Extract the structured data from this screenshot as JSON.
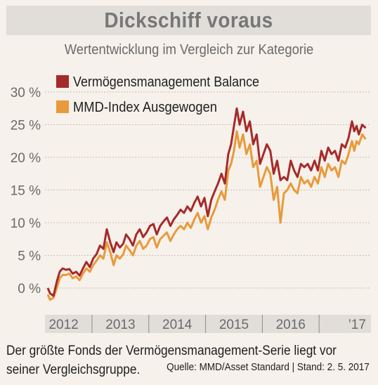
{
  "header": {
    "title": "Dickschiff voraus",
    "subtitle": "Wertentwicklung im Vergleich zur Kategorie"
  },
  "footer": {
    "caption_line1": "Der größte Fonds der Vermögensmanagement-Serie liegt vor",
    "caption_line2": "seiner Vergleichsgruppe.",
    "source": "Quelle: MMD/Asset Standard  |  Stand: 2. 5. 2017"
  },
  "colors": {
    "fund": "#a52a2a",
    "index": "#e89a3c",
    "grid": "#c9c0b5",
    "axis_band": "#e1ddd9"
  },
  "chart_data": {
    "type": "line",
    "ylim": [
      -3,
      30
    ],
    "yticks": [
      0,
      5,
      10,
      15,
      20,
      25,
      30
    ],
    "ytick_labels": [
      "0 %",
      "5 %",
      "10 %",
      "15 %",
      "20 %",
      "25 %",
      "30 %"
    ],
    "xlim": [
      2011.72,
      2017.34
    ],
    "x_year_labels": [
      {
        "label": "2012",
        "center": 2012.0
      },
      {
        "label": "2013",
        "center": 2013.0
      },
      {
        "label": "2014",
        "center": 2014.0
      },
      {
        "label": "2015",
        "center": 2015.0
      },
      {
        "label": "2016",
        "center": 2016.0
      },
      {
        "label": "’17",
        "center": 2017.17
      }
    ],
    "x_separators": [
      2012.5,
      2013.5,
      2014.5,
      2015.5,
      2016.5
    ],
    "series": [
      {
        "name": "Vermögensmanagement Balance",
        "color": "#a52a2a",
        "x": [
          2011.72,
          2011.76,
          2011.82,
          2011.88,
          2011.93,
          2011.98,
          2012.04,
          2012.1,
          2012.16,
          2012.22,
          2012.28,
          2012.34,
          2012.4,
          2012.46,
          2012.52,
          2012.58,
          2012.64,
          2012.7,
          2012.76,
          2012.82,
          2012.88,
          2012.93,
          2012.99,
          2013.05,
          2013.1,
          2013.16,
          2013.22,
          2013.28,
          2013.34,
          2013.4,
          2013.46,
          2013.52,
          2013.58,
          2013.64,
          2013.7,
          2013.76,
          2013.82,
          2013.88,
          2013.94,
          2014.0,
          2014.06,
          2014.12,
          2014.18,
          2014.24,
          2014.3,
          2014.36,
          2014.42,
          2014.48,
          2014.54,
          2014.6,
          2014.66,
          2014.72,
          2014.78,
          2014.84,
          2014.9,
          2014.95,
          2015.0,
          2015.05,
          2015.1,
          2015.16,
          2015.22,
          2015.28,
          2015.34,
          2015.4,
          2015.46,
          2015.52,
          2015.58,
          2015.64,
          2015.7,
          2015.76,
          2015.82,
          2015.88,
          2015.94,
          2016.0,
          2016.06,
          2016.12,
          2016.18,
          2016.24,
          2016.3,
          2016.36,
          2016.42,
          2016.48,
          2016.54,
          2016.6,
          2016.66,
          2016.72,
          2016.78,
          2016.84,
          2016.9,
          2016.96,
          2017.02,
          2017.08,
          2017.12,
          2017.16,
          2017.2,
          2017.26,
          2017.32
        ],
        "y": [
          0,
          -0.8,
          -1.2,
          1.0,
          2.5,
          3.0,
          2.8,
          2.9,
          2.2,
          2.5,
          1.9,
          3.0,
          4.0,
          3.2,
          4.5,
          5.2,
          6.5,
          6.0,
          9.0,
          7.0,
          5.5,
          7.0,
          6.2,
          6.8,
          8.2,
          7.5,
          6.5,
          8.2,
          9.0,
          7.8,
          8.5,
          9.5,
          9.8,
          8.2,
          9.5,
          10.2,
          10.8,
          9.5,
          10.5,
          11.2,
          12.0,
          11.5,
          12.5,
          11.8,
          13.0,
          14.0,
          12.5,
          13.8,
          11.0,
          13.5,
          14.8,
          16.0,
          17.5,
          16.0,
          20.5,
          22.0,
          24.8,
          27.5,
          25.0,
          27.0,
          24.0,
          25.5,
          22.0,
          23.5,
          19.0,
          20.5,
          22.0,
          21.0,
          17.5,
          19.5,
          16.5,
          17.0,
          16.5,
          19.5,
          18.0,
          17.0,
          19.0,
          18.5,
          19.0,
          18.0,
          19.5,
          18.0,
          21.0,
          19.5,
          21.5,
          20.5,
          21.0,
          19.5,
          22.0,
          21.5,
          23.0,
          25.5,
          24.0,
          24.8,
          23.5,
          25.0,
          24.5
        ]
      },
      {
        "name": "MMD-Index Ausgewogen",
        "color": "#e89a3c",
        "x": [
          2011.72,
          2011.76,
          2011.82,
          2011.88,
          2011.93,
          2011.98,
          2012.04,
          2012.1,
          2012.16,
          2012.22,
          2012.28,
          2012.34,
          2012.4,
          2012.46,
          2012.52,
          2012.58,
          2012.64,
          2012.7,
          2012.76,
          2012.82,
          2012.88,
          2012.93,
          2012.99,
          2013.05,
          2013.1,
          2013.16,
          2013.22,
          2013.28,
          2013.34,
          2013.4,
          2013.46,
          2013.52,
          2013.58,
          2013.64,
          2013.7,
          2013.76,
          2013.82,
          2013.88,
          2013.94,
          2014.0,
          2014.06,
          2014.12,
          2014.18,
          2014.24,
          2014.3,
          2014.36,
          2014.42,
          2014.48,
          2014.54,
          2014.6,
          2014.66,
          2014.72,
          2014.78,
          2014.84,
          2014.9,
          2014.95,
          2015.0,
          2015.05,
          2015.1,
          2015.16,
          2015.22,
          2015.28,
          2015.34,
          2015.4,
          2015.46,
          2015.52,
          2015.58,
          2015.64,
          2015.7,
          2015.76,
          2015.82,
          2015.88,
          2015.94,
          2016.0,
          2016.06,
          2016.12,
          2016.18,
          2016.24,
          2016.3,
          2016.36,
          2016.42,
          2016.48,
          2016.54,
          2016.6,
          2016.66,
          2016.72,
          2016.78,
          2016.84,
          2016.9,
          2016.96,
          2017.02,
          2017.08,
          2017.12,
          2017.16,
          2017.2,
          2017.26,
          2017.32
        ],
        "y": [
          -1.0,
          -1.8,
          -1.5,
          0.0,
          1.5,
          2.0,
          2.0,
          2.2,
          1.5,
          1.8,
          1.2,
          2.2,
          3.0,
          2.5,
          3.5,
          4.2,
          5.0,
          4.5,
          7.0,
          5.5,
          3.5,
          5.0,
          4.5,
          5.2,
          6.5,
          5.8,
          5.0,
          6.5,
          7.2,
          6.0,
          6.5,
          7.5,
          7.8,
          6.2,
          7.5,
          8.0,
          8.5,
          7.2,
          8.2,
          9.0,
          9.5,
          9.0,
          10.0,
          9.2,
          10.5,
          11.5,
          10.0,
          11.0,
          9.0,
          10.8,
          12.0,
          13.5,
          14.8,
          13.5,
          18.0,
          19.0,
          21.0,
          24.0,
          21.5,
          23.5,
          20.5,
          22.0,
          18.5,
          19.5,
          15.5,
          17.0,
          18.5,
          17.5,
          13.5,
          15.5,
          10.0,
          14.5,
          15.0,
          16.0,
          15.0,
          14.5,
          17.0,
          16.0,
          16.5,
          15.5,
          17.0,
          16.0,
          18.5,
          17.0,
          19.0,
          18.0,
          18.5,
          17.0,
          19.5,
          19.0,
          20.5,
          22.5,
          21.0,
          22.5,
          22.0,
          23.5,
          22.8
        ]
      }
    ]
  }
}
